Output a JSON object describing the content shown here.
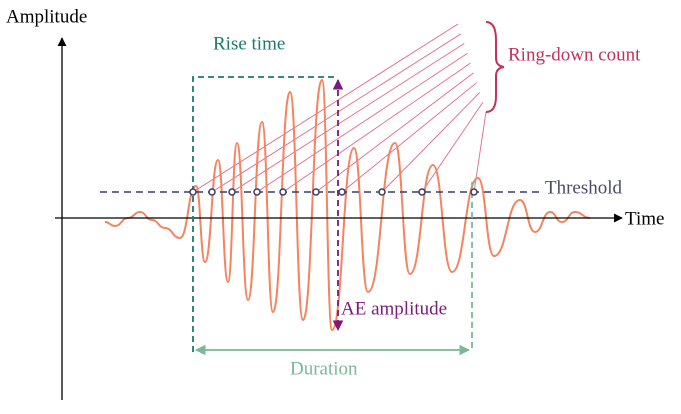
{
  "labels": {
    "amplitude": "Amplitude",
    "time": "Time",
    "rise_time": "Rise time",
    "ring_down_count": "Ring-down count",
    "threshold": "Threshold",
    "ae_amplitude": "AE amplitude",
    "duration": "Duration"
  }
}
